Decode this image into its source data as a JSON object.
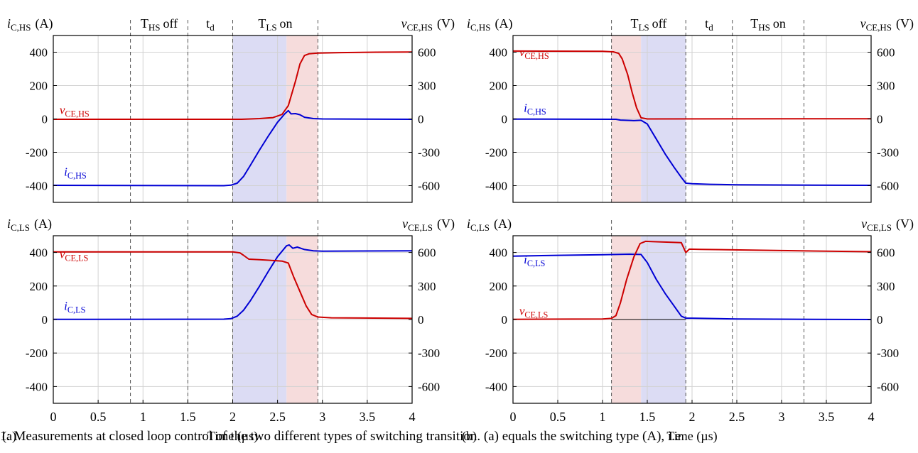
{
  "caption": "1: Measurements at closed loop control of the two different types of switching transition. (a) equals the switching type (A), i.e",
  "colors": {
    "current": "#0000d4",
    "voltage": "#cc0000",
    "shade_blue": "#dcdcf4",
    "shade_red": "#f6dcdc",
    "grid": "#d2d2d2"
  },
  "chart_data": [
    {
      "panel": "(a)",
      "type": "line",
      "xlabel": "Time (µs)",
      "xlim": [
        0,
        4
      ],
      "xticks": [
        "0",
        "0.5",
        "1",
        "1.5",
        "2",
        "2.5",
        "3",
        "3.5",
        "4"
      ],
      "phases": [
        {
          "label": "T_HS off",
          "x": [
            0.86,
            1.5
          ]
        },
        {
          "label": "t_d",
          "x": [
            1.5,
            2.0
          ]
        },
        {
          "label": "T_LS on",
          "x": [
            2.0,
            2.95
          ]
        }
      ],
      "shading": [
        {
          "x": [
            2.0,
            2.6
          ],
          "color": "blue"
        },
        {
          "x": [
            2.6,
            2.95
          ],
          "color": "red"
        }
      ],
      "subplots": [
        {
          "left_label": {
            "sym": "i",
            "sub": "C,HS",
            "unit": "(A)"
          },
          "right_label": {
            "sym": "v",
            "sub": "CE,HS",
            "unit": "(V)"
          },
          "ylim_left": [
            -500,
            500
          ],
          "yticks_left": [
            "400",
            "200",
            "0",
            "-200",
            "-400"
          ],
          "ylim_right": [
            -750,
            750
          ],
          "yticks_right": [
            "600",
            "300",
            "0",
            "-300",
            "-600"
          ],
          "series": [
            {
              "name": "i_C,HS",
              "sym": "i",
              "sub": "C,HS",
              "axis": "left",
              "color": "current",
              "label_pos": [
                0.12,
                -340
              ],
              "points": [
                [
                  0,
                  -398
                ],
                [
                  1.9,
                  -400
                ],
                [
                  1.98,
                  -397
                ],
                [
                  2.05,
                  -385
                ],
                [
                  2.12,
                  -345
                ],
                [
                  2.2,
                  -275
                ],
                [
                  2.3,
                  -185
                ],
                [
                  2.4,
                  -100
                ],
                [
                  2.5,
                  -20
                ],
                [
                  2.58,
                  30
                ],
                [
                  2.62,
                  50
                ],
                [
                  2.65,
                  30
                ],
                [
                  2.7,
                  32
                ],
                [
                  2.75,
                  25
                ],
                [
                  2.8,
                  10
                ],
                [
                  2.9,
                  2
                ],
                [
                  3.0,
                  0
                ],
                [
                  4.0,
                  -2
                ]
              ]
            },
            {
              "name": "v_CE,HS",
              "sym": "v",
              "sub": "CE,HS",
              "axis": "right",
              "color": "voltage",
              "label_pos": [
                0.07,
                45
              ],
              "points": [
                [
                  0,
                  -3
                ],
                [
                  2.1,
                  -3
                ],
                [
                  2.3,
                  3
                ],
                [
                  2.45,
                  12
                ],
                [
                  2.55,
                  40
                ],
                [
                  2.62,
                  120
                ],
                [
                  2.7,
                  340
                ],
                [
                  2.75,
                  495
                ],
                [
                  2.8,
                  570
                ],
                [
                  2.85,
                  585
                ],
                [
                  2.95,
                  592
                ],
                [
                  3.2,
                  596
                ],
                [
                  3.6,
                  600
                ],
                [
                  4.0,
                  602
                ]
              ]
            }
          ]
        },
        {
          "left_label": {
            "sym": "i",
            "sub": "C,LS",
            "unit": "(A)"
          },
          "right_label": {
            "sym": "v",
            "sub": "CE,LS",
            "unit": "(V)"
          },
          "ylim_left": [
            -500,
            500
          ],
          "yticks_left": [
            "400",
            "200",
            "0",
            "-200",
            "-400"
          ],
          "ylim_right": [
            -750,
            750
          ],
          "yticks_right": [
            "600",
            "300",
            "0",
            "-300",
            "-600"
          ],
          "series": [
            {
              "name": "i_C,LS",
              "sym": "i",
              "sub": "C,LS",
              "axis": "left",
              "color": "current",
              "label_pos": [
                0.12,
                58
              ],
              "points": [
                [
                  0,
                  1
                ],
                [
                  1.9,
                  2
                ],
                [
                  1.98,
                  5
                ],
                [
                  2.05,
                  20
                ],
                [
                  2.12,
                  55
                ],
                [
                  2.2,
                  115
                ],
                [
                  2.3,
                  200
                ],
                [
                  2.4,
                  290
                ],
                [
                  2.5,
                  375
                ],
                [
                  2.6,
                  440
                ],
                [
                  2.63,
                  445
                ],
                [
                  2.67,
                  425
                ],
                [
                  2.72,
                  432
                ],
                [
                  2.8,
                  418
                ],
                [
                  2.9,
                  410
                ],
                [
                  3.0,
                  408
                ],
                [
                  4.0,
                  410
                ]
              ]
            },
            {
              "name": "v_CE,LS",
              "sym": "v",
              "sub": "CE,LS",
              "axis": "right",
              "color": "voltage",
              "label_pos": [
                0.07,
                550
              ],
              "points": [
                [
                  0,
                  605
                ],
                [
                  2.0,
                  606
                ],
                [
                  2.08,
                  597
                ],
                [
                  2.12,
                  575
                ],
                [
                  2.18,
                  540
                ],
                [
                  2.3,
                  535
                ],
                [
                  2.45,
                  528
                ],
                [
                  2.55,
                  523
                ],
                [
                  2.62,
                  505
                ],
                [
                  2.68,
                  380
                ],
                [
                  2.75,
                  250
                ],
                [
                  2.82,
                  120
                ],
                [
                  2.88,
                  45
                ],
                [
                  2.95,
                  22
                ],
                [
                  3.1,
                  15
                ],
                [
                  4.0,
                  10
                ]
              ]
            }
          ]
        }
      ]
    },
    {
      "panel": "(b)",
      "type": "line",
      "xlabel": "Time (µs)",
      "xlim": [
        0,
        4
      ],
      "xticks": [
        "0",
        "0.5",
        "1",
        "1.5",
        "2",
        "2.5",
        "3",
        "3.5",
        "4"
      ],
      "phases": [
        {
          "label": "T_LS off",
          "x": [
            1.1,
            1.93
          ]
        },
        {
          "label": "t_d",
          "x": [
            1.93,
            2.45
          ]
        },
        {
          "label": "T_HS on",
          "x": [
            2.45,
            3.25
          ]
        }
      ],
      "shading": [
        {
          "x": [
            1.1,
            1.43
          ],
          "color": "red"
        },
        {
          "x": [
            1.43,
            1.93
          ],
          "color": "blue"
        }
      ],
      "subplots": [
        {
          "left_label": {
            "sym": "i",
            "sub": "C,HS",
            "unit": "(A)"
          },
          "right_label": {
            "sym": "v",
            "sub": "CE,HS",
            "unit": "(V)"
          },
          "ylim_left": [
            -500,
            500
          ],
          "yticks_left": [
            "400",
            "200",
            "0",
            "-200",
            "-400"
          ],
          "ylim_right": [
            -750,
            750
          ],
          "yticks_right": [
            "600",
            "300",
            "0",
            "-300",
            "-600"
          ],
          "series": [
            {
              "name": "v_CE,HS",
              "sym": "v",
              "sub": "CE,HS",
              "axis": "right",
              "color": "voltage",
              "label_pos": [
                0.07,
                565
              ],
              "points": [
                [
                  0,
                  610
                ],
                [
                  1.0,
                  608
                ],
                [
                  1.12,
                  603
                ],
                [
                  1.18,
                  590
                ],
                [
                  1.22,
                  540
                ],
                [
                  1.28,
                  400
                ],
                [
                  1.33,
                  240
                ],
                [
                  1.38,
                  100
                ],
                [
                  1.43,
                  10
                ],
                [
                  1.5,
                  0
                ],
                [
                  4.0,
                  2
                ]
              ]
            },
            {
              "name": "i_C,HS",
              "sym": "i",
              "sub": "C,HS",
              "axis": "left",
              "color": "current",
              "label_pos": [
                0.12,
                42
              ],
              "points": [
                [
                  0,
                  -1
                ],
                [
                  1.15,
                  -2
                ],
                [
                  1.2,
                  -7
                ],
                [
                  1.35,
                  -10
                ],
                [
                  1.43,
                  -8
                ],
                [
                  1.5,
                  -30
                ],
                [
                  1.6,
                  -120
                ],
                [
                  1.7,
                  -210
                ],
                [
                  1.8,
                  -290
                ],
                [
                  1.88,
                  -350
                ],
                [
                  1.93,
                  -385
                ],
                [
                  2.0,
                  -388
                ],
                [
                  2.2,
                  -392
                ],
                [
                  2.5,
                  -395
                ],
                [
                  4.0,
                  -398
                ]
              ]
            }
          ]
        },
        {
          "left_label": {
            "sym": "i",
            "sub": "C,LS",
            "unit": "(A)"
          },
          "right_label": {
            "sym": "v",
            "sub": "CE,LS",
            "unit": "(V)"
          },
          "ylim_left": [
            -500,
            500
          ],
          "yticks_left": [
            "400",
            "200",
            "0",
            "-200",
            "-400"
          ],
          "ylim_right": [
            -750,
            750
          ],
          "yticks_right": [
            "600",
            "300",
            "0",
            "-300",
            "-600"
          ],
          "series": [
            {
              "name": "i_C,LS",
              "sym": "i",
              "sub": "C,LS",
              "axis": "left",
              "color": "current",
              "label_pos": [
                0.12,
                335
              ],
              "points": [
                [
                  0,
                  378
                ],
                [
                  0.5,
                  383
                ],
                [
                  1.0,
                  387
                ],
                [
                  1.3,
                  390
                ],
                [
                  1.43,
                  388
                ],
                [
                  1.5,
                  340
                ],
                [
                  1.6,
                  240
                ],
                [
                  1.7,
                  155
                ],
                [
                  1.8,
                  80
                ],
                [
                  1.88,
                  20
                ],
                [
                  1.93,
                  8
                ],
                [
                  2.0,
                  8
                ],
                [
                  2.5,
                  3
                ],
                [
                  4.0,
                  0
                ]
              ]
            },
            {
              "name": "v_CE,LS",
              "sym": "v",
              "sub": "CE,LS",
              "axis": "right",
              "color": "voltage",
              "label_pos": [
                0.07,
                40
              ],
              "points": [
                [
                  0,
                  2
                ],
                [
                  1.0,
                  5
                ],
                [
                  1.1,
                  10
                ],
                [
                  1.15,
                  35
                ],
                [
                  1.2,
                  150
                ],
                [
                  1.27,
                  360
                ],
                [
                  1.35,
                  560
                ],
                [
                  1.42,
                  680
                ],
                [
                  1.48,
                  700
                ],
                [
                  1.55,
                  698
                ],
                [
                  1.8,
                  690
                ],
                [
                  1.88,
                  688
                ],
                [
                  1.93,
                  600
                ],
                [
                  1.97,
                  630
                ],
                [
                  2.1,
                  628
                ],
                [
                  3.0,
                  617
                ],
                [
                  4.0,
                  607
                ]
              ]
            }
          ]
        }
      ]
    }
  ]
}
